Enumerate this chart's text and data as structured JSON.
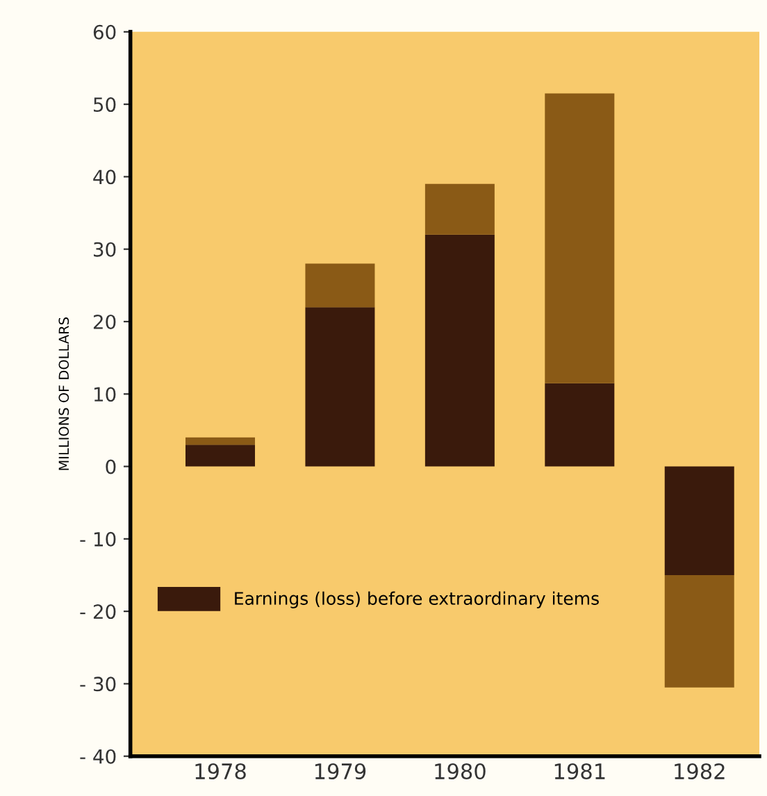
{
  "chart_data": {
    "type": "bar",
    "stacked": true,
    "ylabel": "MILLIONS OF DOLLARS",
    "categories": [
      "1978",
      "1979",
      "1980",
      "1981",
      "1982"
    ],
    "series": [
      {
        "name": "Earnings (loss) before extraordinary items",
        "color": "#3a1a0c",
        "values": [
          3,
          22,
          32,
          11.5,
          -15
        ]
      },
      {
        "color": "#8a5a16",
        "values": [
          1,
          6,
          7,
          40,
          -15.5
        ]
      }
    ],
    "ylim": [
      -40,
      60
    ],
    "yticks": [
      {
        "value": -40,
        "label": "- 40"
      },
      {
        "value": -30,
        "label": "- 30"
      },
      {
        "value": -20,
        "label": "- 20"
      },
      {
        "value": -10,
        "label": "- 10"
      },
      0,
      10,
      20,
      30,
      40,
      50,
      60
    ],
    "grid": false,
    "legend": "bottom left"
  }
}
